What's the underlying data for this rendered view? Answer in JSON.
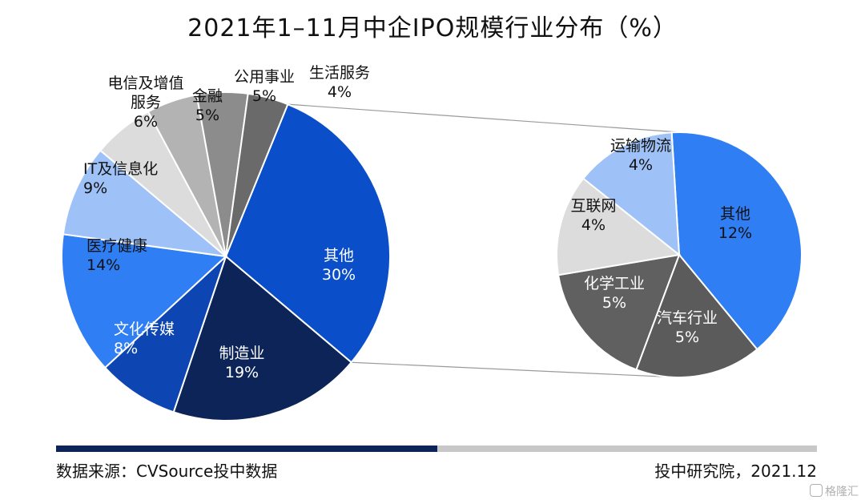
{
  "title": "2021年1–11月中企IPO规模行业分布（%）",
  "chart_data": {
    "type": "pie",
    "main_pie": {
      "slices": [
        {
          "name": "其他",
          "value": 30,
          "label": "30%",
          "color": "#0a4ec9",
          "text_color": "#ffffff"
        },
        {
          "name": "制造业",
          "value": 19,
          "label": "19%",
          "color": "#0c2457",
          "text_color": "#ffffff"
        },
        {
          "name": "文化传媒",
          "value": 8,
          "label": "8%",
          "color": "#0d45b3",
          "text_color": "#ffffff"
        },
        {
          "name": "医疗健康",
          "value": 14,
          "label": "14%",
          "color": "#2f7ef3",
          "text_color": "#111111"
        },
        {
          "name": "IT及信息化",
          "value": 9,
          "label": "9%",
          "color": "#9ec2f8",
          "text_color": "#111111"
        },
        {
          "name": "电信及增值服务",
          "value": 6,
          "label": "6%",
          "color": "#dcdcdc",
          "text_color": "#111111"
        },
        {
          "name": "金融",
          "value": 5,
          "label": "5%",
          "color": "#b3b3b3",
          "text_color": "#111111"
        },
        {
          "name": "公用事业",
          "value": 5,
          "label": "5%",
          "color": "#8c8c8c",
          "text_color": "#111111"
        },
        {
          "name": "生活服务",
          "value": 4,
          "label": "4%",
          "color": "#6a6a6a",
          "text_color": "#111111"
        }
      ]
    },
    "breakdown_of": "其他",
    "sub_pie": {
      "slices": [
        {
          "name": "其他",
          "value": 12,
          "label": "12%",
          "color": "#2f7ef3",
          "text_color": "#111111"
        },
        {
          "name": "汽车行业",
          "value": 5,
          "label": "5%",
          "color": "#5b5b5b",
          "text_color": "#ffffff"
        },
        {
          "name": "化学工业",
          "value": 5,
          "label": "5%",
          "color": "#606060",
          "text_color": "#ffffff"
        },
        {
          "name": "互联网",
          "value": 4,
          "label": "4%",
          "color": "#dcdcdc",
          "text_color": "#111111"
        },
        {
          "name": "运输物流",
          "value": 4,
          "label": "4%",
          "color": "#9ec2f8",
          "text_color": "#111111"
        }
      ]
    }
  },
  "footer": {
    "source": "数据来源：CVSource投中数据",
    "publisher": "投中研究院，2021.12",
    "watermark": "格隆汇"
  }
}
